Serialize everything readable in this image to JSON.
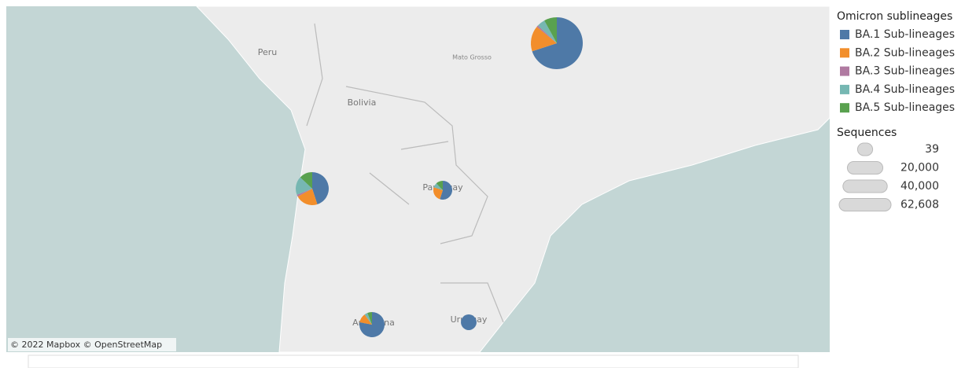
{
  "map": {
    "labels": [
      "Peru",
      "Bolivia",
      "Mato Grosso",
      "Paraguay",
      "Argentina",
      "Uruguay"
    ],
    "credit": "© 2022 Mapbox © OpenStreetMap"
  },
  "legend": {
    "title": "Omicron sublineages",
    "items": [
      {
        "name": "BA.1 Sub-lineages",
        "color": "#4e79a7"
      },
      {
        "name": "BA.2 Sub-lineages",
        "color": "#f28e2b"
      },
      {
        "name": "BA.3 Sub-lineages",
        "color": "#b07aa1"
      },
      {
        "name": "BA.4 Sub-lineages",
        "color": "#76b7b2"
      },
      {
        "name": "BA.5 Sub-lineages",
        "color": "#59a14f"
      }
    ]
  },
  "size_legend": {
    "title": "Sequences",
    "values": [
      39,
      20000,
      40000,
      62608
    ],
    "labels": [
      "39",
      "20,000",
      "40,000",
      "62,608"
    ]
  },
  "pies": [
    {
      "sequences": 62608,
      "shares": [
        70,
        16,
        1,
        5,
        8
      ]
    },
    {
      "sequences": 25300,
      "shares": [
        45,
        22,
        2,
        18,
        13
      ]
    },
    {
      "sequences": 8300,
      "shares": [
        55,
        25,
        0,
        8,
        12
      ]
    },
    {
      "sequences": 14700,
      "shares": [
        78,
        12,
        0,
        4,
        6
      ]
    },
    {
      "sequences": 5700,
      "shares": [
        100,
        0,
        0,
        0,
        0
      ]
    }
  ]
}
